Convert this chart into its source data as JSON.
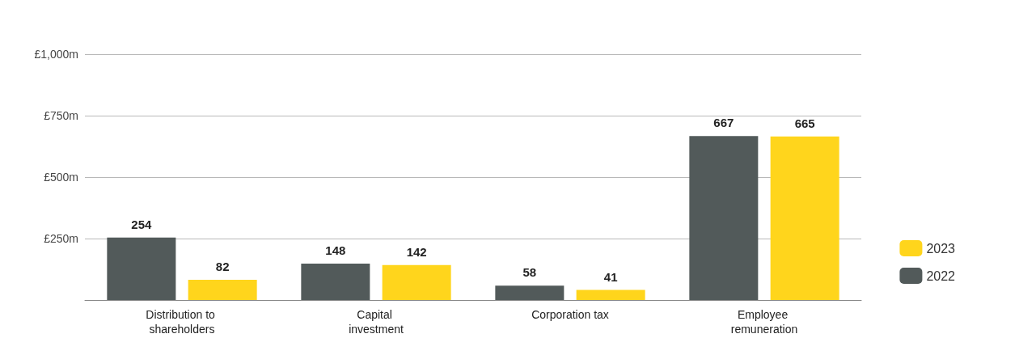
{
  "chart_data": {
    "type": "bar",
    "categories": [
      "Distribution to shareholders",
      "Capital investment",
      "Corporation tax",
      "Employee remuneration"
    ],
    "series": [
      {
        "name": "2022",
        "color": "#525a5a",
        "values": [
          254,
          148,
          58,
          667
        ]
      },
      {
        "name": "2023",
        "color": "#ffd51c",
        "values": [
          82,
          142,
          41,
          665
        ]
      }
    ],
    "ylim": [
      0,
      1000
    ],
    "yticks": [
      {
        "value": 250,
        "label": "£250m"
      },
      {
        "value": 500,
        "label": "£500m"
      },
      {
        "value": 750,
        "label": "£750m"
      },
      {
        "value": 1000,
        "label": "£1,000m"
      }
    ],
    "grid": "y",
    "legend": "right",
    "data_labels": true
  }
}
